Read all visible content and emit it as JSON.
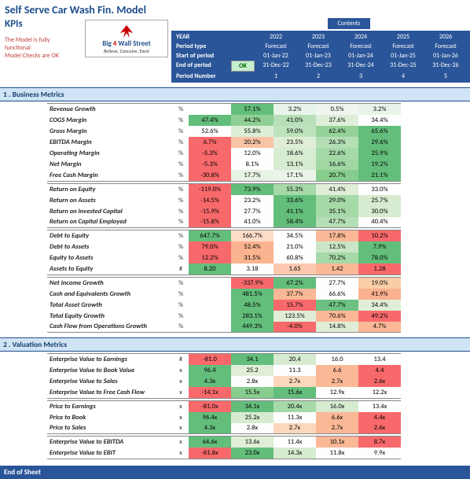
{
  "title": "Self Serve Car Wash Fin. Model",
  "kpi_heading": "KPIs",
  "notes": {
    "line1": "The Model is fully functional",
    "line2": "Model Checks are OK"
  },
  "logo": {
    "brand_pre": "Big ",
    "brand_num": "4",
    "brand_post": " Wall Street",
    "sub": "Believe, Conceive, Excel"
  },
  "contents_label": "Contents",
  "year_header": {
    "rows": [
      {
        "label": "YEAR",
        "ok": "",
        "vals": [
          "2022",
          "2023",
          "2024",
          "2025",
          "2026"
        ]
      },
      {
        "label": "Period type",
        "ok": "",
        "vals": [
          "Forecast",
          "Forecast",
          "Forecast",
          "Forecast",
          "Forecast"
        ]
      },
      {
        "label": "Start of period",
        "ok": "",
        "vals": [
          "01-Jan-22",
          "01-Jan-23",
          "01-Jan-24",
          "01-Jan-25",
          "01-Jan-26"
        ]
      },
      {
        "label": "End of period",
        "ok": "OK",
        "vals": [
          "31-Dec-22",
          "31-Dec-23",
          "31-Dec-24",
          "31-Dec-25",
          "31-Dec-26"
        ]
      },
      {
        "label": "Period Number",
        "ok": "",
        "vals": [
          "1",
          "2",
          "3",
          "4",
          "5"
        ]
      }
    ]
  },
  "sections": [
    {
      "title": "1 . Business Metrics",
      "groups": [
        {
          "rows": [
            {
              "label": "Revenue Growth",
              "unit": "%",
              "vals": [
                "",
                "57.1%",
                "3.2%",
                "0.5%",
                "3.2%"
              ],
              "bg": [
                "",
                "#63be7b",
                "#e8f4ea",
                "#f0f5ef",
                "#e8f4ea"
              ]
            },
            {
              "label": "COGS Margin",
              "unit": "%",
              "vals": [
                "47.4%",
                "44.2%",
                "41.0%",
                "37.6%",
                "34.4%"
              ],
              "bg": [
                "#63be7b",
                "#8fcf95",
                "#b7e0b8",
                "#deefd9",
                "#fefefe"
              ]
            },
            {
              "label": "Gross Margin",
              "unit": "%",
              "vals": [
                "52.6%",
                "55.8%",
                "59.0%",
                "62.4%",
                "65.6%"
              ],
              "bg": [
                "#fefefe",
                "#ddeed7",
                "#bde2bc",
                "#95d29a",
                "#63be7b"
              ]
            },
            {
              "label": "EBITDA Margin",
              "unit": "%",
              "vals": [
                "6.7%",
                "20.2%",
                "23.5%",
                "26.3%",
                "29.6%"
              ],
              "bg": [
                "#f8696b",
                "#f9c3a5",
                "#e0eed7",
                "#b4dfb5",
                "#63be7b"
              ]
            },
            {
              "label": "Operating Margin",
              "unit": "%",
              "vals": [
                "-5.3%",
                "12.0%",
                "18.6%",
                "22.6%",
                "25.9%"
              ],
              "bg": [
                "#f8696b",
                "#fefefe",
                "#d8ecd2",
                "#a6d9a8",
                "#63be7b"
              ]
            },
            {
              "label": "Net Margin",
              "unit": "%",
              "vals": [
                "-5.3%",
                "8.1%",
                "13.1%",
                "16.6%",
                "19.2%"
              ],
              "bg": [
                "#f8696b",
                "#fefefe",
                "#d6ebd0",
                "#a0d7a3",
                "#63be7b"
              ]
            },
            {
              "label": "Free Cash Margin",
              "unit": "%",
              "vals": [
                "-30.8%",
                "17.7%",
                "17.1%",
                "20.7%",
                "21.1%"
              ],
              "bg": [
                "#f8696b",
                "#e7f3e4",
                "#ebf4e8",
                "#87cd8d",
                "#63be7b"
              ]
            }
          ]
        },
        {
          "rows": [
            {
              "label": "Return on Equity",
              "unit": "%",
              "vals": [
                "-119.0%",
                "73.9%",
                "55.3%",
                "41.4%",
                "33.0%"
              ],
              "bg": [
                "#f8696b",
                "#63be7b",
                "#a6d9a8",
                "#e0eed7",
                "#fefefe"
              ]
            },
            {
              "label": "Return on Assets",
              "unit": "%",
              "vals": [
                "-14.5%",
                "23.2%",
                "33.6%",
                "29.0%",
                "25.7%"
              ],
              "bg": [
                "#f8696b",
                "#fefefe",
                "#63be7b",
                "#a6d9a8",
                "#d6ebd0"
              ]
            },
            {
              "label": "Return on Invested Capital",
              "unit": "%",
              "vals": [
                "-15.9%",
                "27.7%",
                "41.1%",
                "35.1%",
                "30.0%"
              ],
              "bg": [
                "#f8696b",
                "#fefefe",
                "#63be7b",
                "#a6d9a8",
                "#d6ebd0"
              ]
            },
            {
              "label": "Return on Capital Employed",
              "unit": "%",
              "vals": [
                "-15.8%",
                "41.0%",
                "58.4%",
                "47.7%",
                "40.4%"
              ],
              "bg": [
                "#f8696b",
                "#fefefe",
                "#63be7b",
                "#b4dfb5",
                "#fefefe"
              ]
            }
          ]
        },
        {
          "rows": [
            {
              "label": "Debt to Equity",
              "unit": "%",
              "vals": [
                "647.7%",
                "166.7%",
                "34.5%",
                "17.8%",
                "10.2%"
              ],
              "bg": [
                "#63be7b",
                "#fcdcc7",
                "#fefefe",
                "#fab896",
                "#f8696b"
              ]
            },
            {
              "label": "Debt to Assets",
              "unit": "%",
              "vals": [
                "79.0%",
                "52.4%",
                "21.0%",
                "12.5%",
                "7.9%"
              ],
              "bg": [
                "#f8696b",
                "#fbb38f",
                "#fefefe",
                "#cbe6c7",
                "#63be7b"
              ]
            },
            {
              "label": "Equity to Assets",
              "unit": "%",
              "vals": [
                "12.2%",
                "31.5%",
                "60.8%",
                "70.2%",
                "78.0%"
              ],
              "bg": [
                "#f8696b",
                "#fbb38f",
                "#fefefe",
                "#a6d9a8",
                "#63be7b"
              ]
            },
            {
              "label": "Assets to Equity",
              "unit": "#",
              "vals": [
                "8.20",
                "3.18",
                "1.65",
                "1.42",
                "1.28"
              ],
              "bg": [
                "#63be7b",
                "#fefefe",
                "#fcc8af",
                "#fab896",
                "#f8696b"
              ]
            }
          ]
        },
        {
          "rows": [
            {
              "label": "Net Income Growth",
              "unit": "%",
              "vals": [
                "",
                "-337.9%",
                "67.2%",
                "27.7%",
                "19.0%"
              ],
              "bg": [
                "",
                "#f8696b",
                "#63be7b",
                "#fefefe",
                "#f9cda8"
              ]
            },
            {
              "label": "Cash and Equivalents Growth",
              "unit": "%",
              "vals": [
                "",
                "481.5%",
                "37.7%",
                "66.6%",
                "41.9%"
              ],
              "bg": [
                "",
                "#63be7b",
                "#fab896",
                "#fefefe",
                "#fab18d"
              ]
            },
            {
              "label": "Total Asset Growth",
              "unit": "%",
              "vals": [
                "",
                "48.5%",
                "15.7%",
                "47.7%",
                "34.4%"
              ],
              "bg": [
                "",
                "#63be7b",
                "#f8696b",
                "#6ec183",
                "#e0eed7"
              ]
            },
            {
              "label": "Total Equity Growth",
              "unit": "%",
              "vals": [
                "",
                "283.1%",
                "123.5%",
                "70.6%",
                "49.2%"
              ],
              "bg": [
                "",
                "#63be7b",
                "#e0eed7",
                "#fab896",
                "#f8696b"
              ]
            },
            {
              "label": "Cash Flow from Operations Growth",
              "unit": "%",
              "vals": [
                "",
                "449.3%",
                "-4.0%",
                "14.8%",
                "4.7%"
              ],
              "bg": [
                "",
                "#63be7b",
                "#f8696b",
                "#e0eed7",
                "#fab896"
              ]
            }
          ]
        }
      ]
    },
    {
      "title": "2 . Valuation Metrics",
      "groups": [
        {
          "rows": [
            {
              "label": "Enterprise Value to Earnings",
              "unit": "#",
              "vals": [
                "-81.0",
                "34.1",
                "20.4",
                "16.0",
                "13.4"
              ],
              "bg": [
                "#f8696b",
                "#63be7b",
                "#d6ebd0",
                "#fefefe",
                "#fefefe"
              ]
            },
            {
              "label": "Enterprise Value to Book Value",
              "unit": "x",
              "vals": [
                "96.4",
                "25.2",
                "11.3",
                "6.6",
                "4.4"
              ],
              "bg": [
                "#63be7b",
                "#e0eed7",
                "#fefefe",
                "#fab896",
                "#f8696b"
              ]
            },
            {
              "label": "Enterprise Value to Sales",
              "unit": "x",
              "vals": [
                "4.3x",
                "2.8x",
                "2.7x",
                "2.7x",
                "2.6x"
              ],
              "bg": [
                "#63be7b",
                "#fefefe",
                "#fcd7bb",
                "#fab896",
                "#f8696b"
              ]
            },
            {
              "label": "Enterprise Value to Free Cash Flow",
              "unit": "x",
              "vals": [
                "-14.1x",
                "15.5x",
                "15.6x",
                "12.9x",
                "12.2x"
              ],
              "bg": [
                "#f8696b",
                "#87cd8d",
                "#63be7b",
                "#fefefe",
                "#fefefe"
              ]
            }
          ]
        },
        {
          "rows": [
            {
              "label": "Price to Earnings",
              "unit": "x",
              "vals": [
                "-81.0x",
                "34.1x",
                "20.4x",
                "16.0x",
                "13.4x"
              ],
              "bg": [
                "#f8696b",
                "#63be7b",
                "#a6d9a8",
                "#d6ebd0",
                "#fefefe"
              ]
            },
            {
              "label": "Price to Book",
              "unit": "x",
              "vals": [
                "96.4x",
                "25.2x",
                "11.3x",
                "6.6x",
                "4.4x"
              ],
              "bg": [
                "#63be7b",
                "#d6ebd0",
                "#fefefe",
                "#fab896",
                "#f8696b"
              ]
            },
            {
              "label": "Price to Sales",
              "unit": "x",
              "vals": [
                "4.3x",
                "2.8x",
                "2.7x",
                "2.7x",
                "2.6x"
              ],
              "bg": [
                "#63be7b",
                "#fefefe",
                "#fcd7bb",
                "#fab896",
                "#f8696b"
              ]
            }
          ]
        },
        {
          "rows": [
            {
              "label": "Enterprise Value to EBITDA",
              "unit": "x",
              "vals": [
                "64.6x",
                "13.6x",
                "11.4x",
                "10.1x",
                "8.7x"
              ],
              "bg": [
                "#63be7b",
                "#e0eed7",
                "#fefefe",
                "#fab896",
                "#f8696b"
              ]
            },
            {
              "label": "Enterprise Value to EBIT",
              "unit": "x",
              "vals": [
                "-81.8x",
                "23.0x",
                "14.3x",
                "11.8x",
                "9.9x"
              ],
              "bg": [
                "#f8696b",
                "#63be7b",
                "#d6ebd0",
                "#fefefe",
                "#fefefe"
              ]
            }
          ]
        }
      ]
    }
  ],
  "end_label": "End of Sheet"
}
